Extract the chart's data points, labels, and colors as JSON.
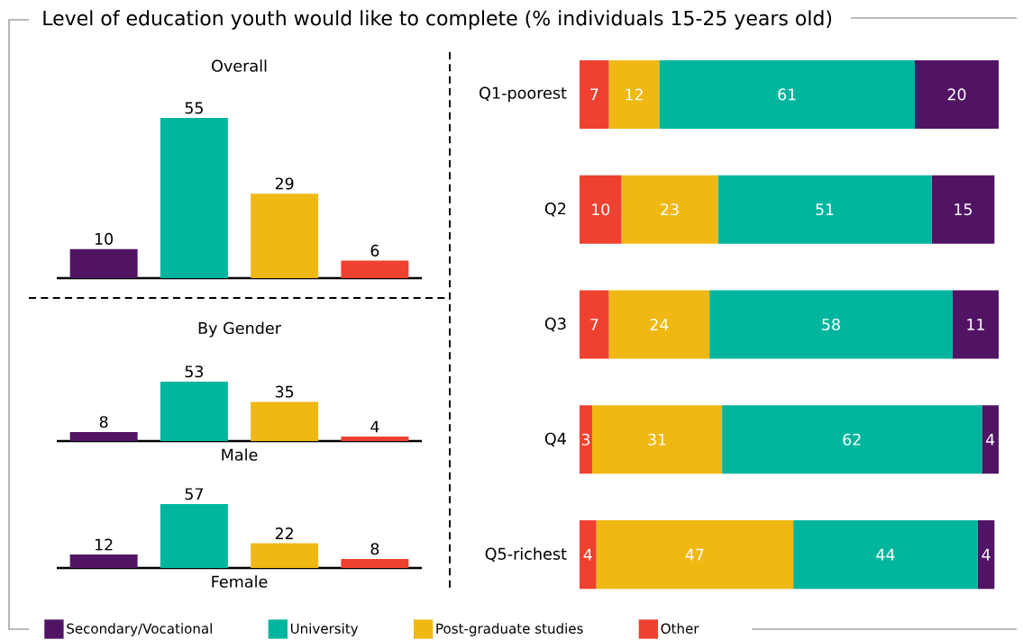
{
  "chart_data": [
    {
      "type": "bar",
      "title": "Level of education youth would like to complete (% individuals 15-25 years old)",
      "subtitle": "Overall",
      "categories": [
        null,
        null,
        null,
        null
      ],
      "values": [
        10,
        55,
        29,
        6
      ],
      "colors": [
        "#511464",
        "#00b59e",
        "#f0b813",
        "#ef4130"
      ],
      "data_labels": true
    },
    {
      "type": "bar",
      "title": "By Gender",
      "xlabel": "Male",
      "categories": [
        null,
        null,
        null,
        null
      ],
      "values": [
        8,
        53,
        35,
        4
      ],
      "colors": [
        "#511464",
        "#00b59e",
        "#f0b813",
        "#ef4130"
      ],
      "data_labels": true
    },
    {
      "type": "bar",
      "xlabel": "Female",
      "categories": [
        null,
        null,
        null,
        null
      ],
      "values": [
        12,
        57,
        22,
        8
      ],
      "colors": [
        "#511464",
        "#00b59e",
        "#f0b813",
        "#ef4130"
      ],
      "data_labels": true
    },
    {
      "type": "bar",
      "orientation": "horizontal",
      "stacked": true,
      "categories": [
        "Q1-poorest",
        "Q2",
        "Q3",
        "Q4",
        "Q5-richest"
      ],
      "series": [
        {
          "name": "Other",
          "color": "#ef4130",
          "values": [
            7,
            10,
            7,
            3,
            4
          ]
        },
        {
          "name": "Post-graduate studies",
          "color": "#f0b813",
          "values": [
            12,
            23,
            24,
            31,
            47
          ]
        },
        {
          "name": "University",
          "color": "#00b59e",
          "values": [
            61,
            51,
            58,
            62,
            44
          ]
        },
        {
          "name": "Secondary/Vocational",
          "color": "#511464",
          "values": [
            20,
            15,
            11,
            4,
            4
          ]
        }
      ],
      "data_labels": true,
      "legend": "bottom"
    }
  ]
}
